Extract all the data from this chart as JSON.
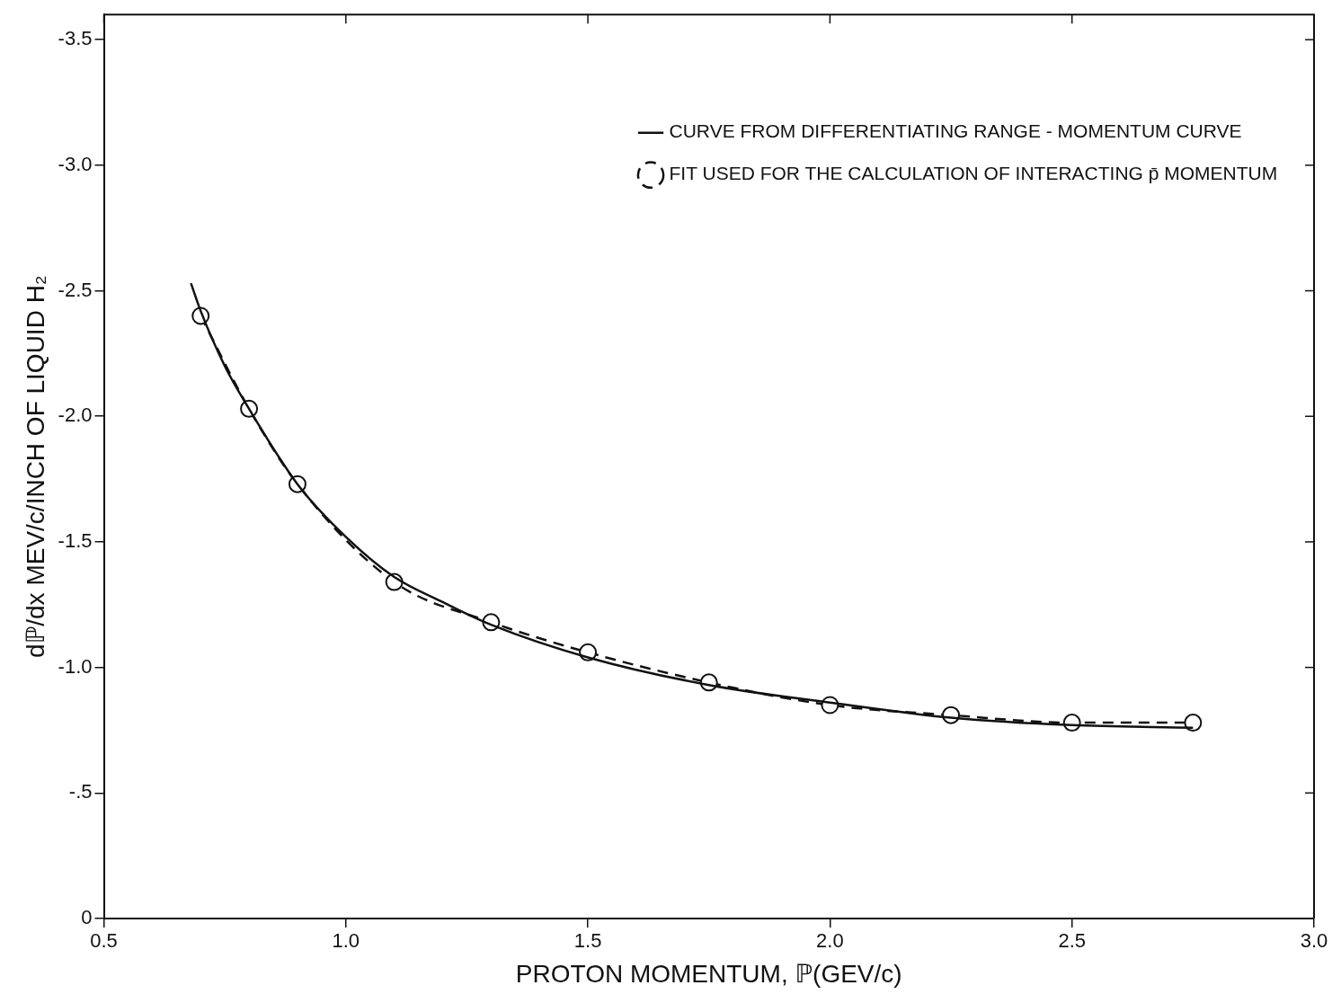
{
  "chart_data": {
    "type": "line",
    "xlabel": "PROTON MOMENTUM, ℙ(GEV/c)",
    "ylabel": "dℙ/dx MEV/c/INCH OF LIQUID H₂",
    "series": [
      {
        "name": "CURVE FROM DIFFERENTIATING RANGE - MOMENTUM CURVE",
        "color": "#111111",
        "line_style": "solid",
        "marker": "none",
        "x": [
          0.68,
          0.7,
          0.75,
          0.8,
          0.9,
          1.0,
          1.1,
          1.2,
          1.3,
          1.5,
          1.75,
          2.0,
          2.25,
          2.5,
          2.75
        ],
        "values": [
          -2.53,
          -2.42,
          -2.2,
          -2.03,
          -1.73,
          -1.52,
          -1.36,
          -1.26,
          -1.17,
          -1.04,
          -0.93,
          -0.86,
          -0.8,
          -0.77,
          -0.76
        ]
      },
      {
        "name": "FIT USED FOR THE CALCULATION OF INTERACTING p̄ MOMENTUM",
        "color": "#111111",
        "line_style": "dashed",
        "marker": "circle",
        "x": [
          0.7,
          0.8,
          0.9,
          1.1,
          1.3,
          1.5,
          1.75,
          2.0,
          2.25,
          2.5,
          2.75
        ],
        "values": [
          -2.4,
          -2.03,
          -1.73,
          -1.34,
          -1.18,
          -1.06,
          -0.94,
          -0.85,
          -0.81,
          -0.78,
          -0.78
        ]
      }
    ],
    "xlim": [
      0.5,
      3.0
    ],
    "xticks": [
      {
        "value": 0.5,
        "label": "0.5"
      },
      {
        "value": 1.0,
        "label": "1.0"
      },
      {
        "value": 1.5,
        "label": "1.5"
      },
      {
        "value": 2.0,
        "label": "2.0"
      },
      {
        "value": 2.5,
        "label": "2.5"
      },
      {
        "value": 3.0,
        "label": "3.0"
      }
    ],
    "ylim": [
      0,
      -3.6
    ],
    "yticks": [
      0,
      {
        "value": -0.5,
        "label": "-.5"
      },
      {
        "value": -1.0,
        "label": "-1.0"
      },
      -1.5,
      {
        "value": -2.0,
        "label": "-2.0"
      },
      -2.5,
      {
        "value": -3.0,
        "label": "-3.0"
      },
      -3.5
    ],
    "grid": false,
    "legend": "top right"
  }
}
